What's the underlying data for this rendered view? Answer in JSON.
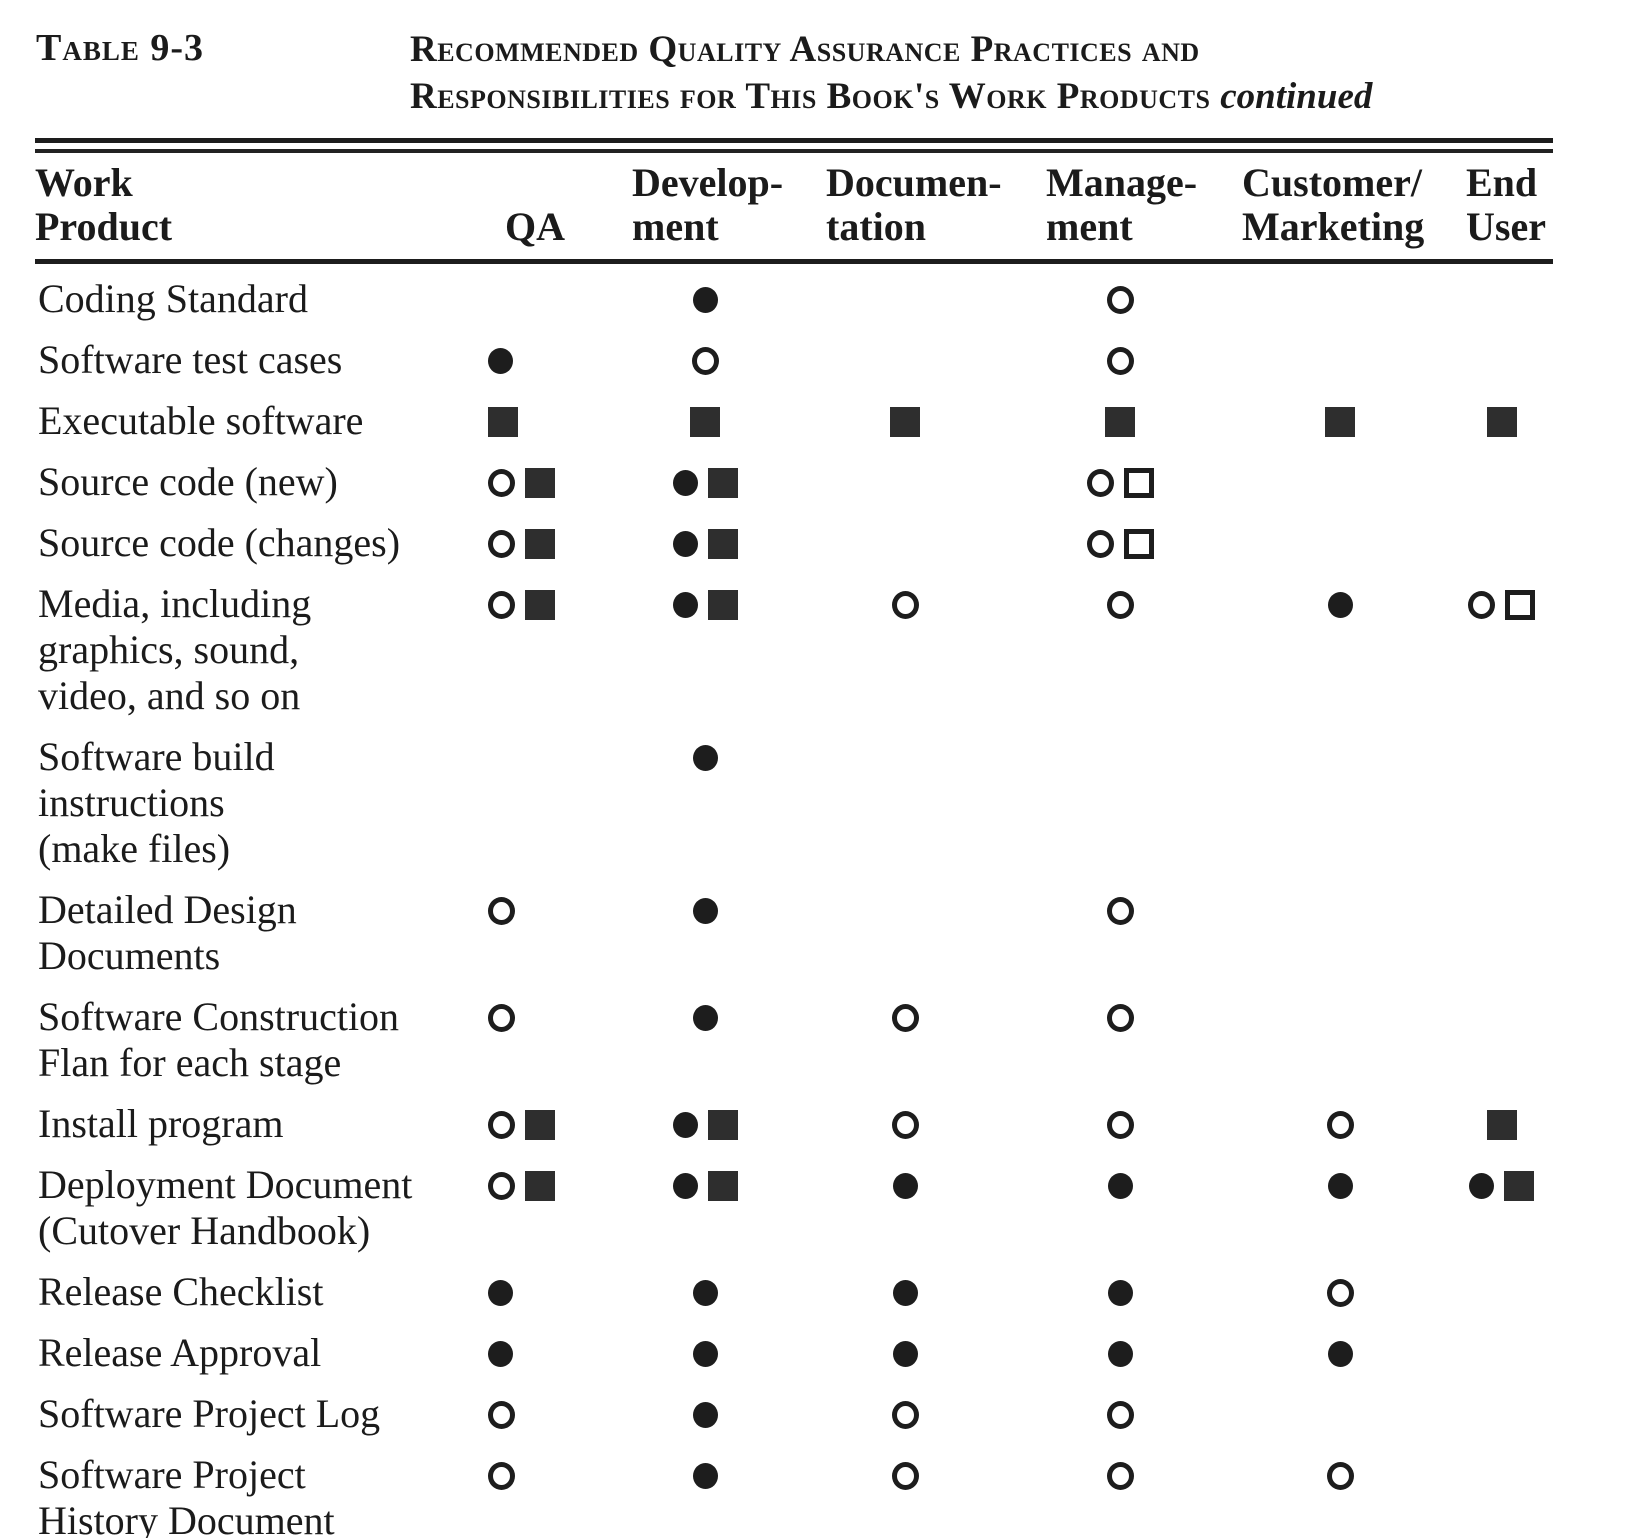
{
  "colors": {
    "ink": "#1d1d1d",
    "paper": "#ffffff"
  },
  "header": {
    "table_label": "Table 9-3",
    "title_line1": "Recommended Quality Assurance Practices and",
    "title_line2": "Responsibilities for This Book's Work Products",
    "title_continued": "continued"
  },
  "table": {
    "columns": [
      "Work Product",
      "QA",
      "Development",
      "Documentation",
      "Management",
      "Customer/Marketing",
      "End User"
    ],
    "header": [
      {
        "line1": "Work",
        "line2": "Product"
      },
      {
        "line1": "",
        "line2": "QA"
      },
      {
        "line1": "Develop-",
        "line2": "ment"
      },
      {
        "line1": "Documen-",
        "line2": "tation"
      },
      {
        "line1": "Manage-",
        "line2": "ment"
      },
      {
        "line1": "Customer/",
        "line2": "Marketing"
      },
      {
        "line1": "End",
        "line2": "User"
      }
    ],
    "symbol_names": {
      "filled-circle": "filled circle",
      "open-circle": "open circle",
      "filled-square": "filled square",
      "open-square": "open square"
    },
    "rows": [
      {
        "label_lines": [
          "Coding Standard"
        ],
        "cells": [
          [],
          [
            "filled-circle"
          ],
          [],
          [
            "open-circle"
          ],
          [],
          []
        ]
      },
      {
        "label_lines": [
          "Software test cases"
        ],
        "cells": [
          [
            "filled-circle"
          ],
          [
            "open-circle"
          ],
          [],
          [
            "open-circle"
          ],
          [],
          []
        ]
      },
      {
        "label_lines": [
          "Executable software"
        ],
        "cells": [
          [
            "filled-square"
          ],
          [
            "filled-square"
          ],
          [
            "filled-square"
          ],
          [
            "filled-square"
          ],
          [
            "filled-square"
          ],
          [
            "filled-square"
          ]
        ]
      },
      {
        "label_lines": [
          "Source code (new)"
        ],
        "cells": [
          [
            "open-circle",
            "filled-square"
          ],
          [
            "filled-circle",
            "filled-square"
          ],
          [],
          [
            "open-circle",
            "open-square"
          ],
          [],
          []
        ]
      },
      {
        "label_lines": [
          "Source code (changes)"
        ],
        "cells": [
          [
            "open-circle",
            "filled-square"
          ],
          [
            "filled-circle",
            "filled-square"
          ],
          [],
          [
            "open-circle",
            "open-square"
          ],
          [],
          []
        ]
      },
      {
        "label_lines": [
          "Media, including",
          "graphics, sound,",
          "video, and so on"
        ],
        "cells": [
          [
            "open-circle",
            "filled-square"
          ],
          [
            "filled-circle",
            "filled-square"
          ],
          [
            "open-circle"
          ],
          [
            "open-circle"
          ],
          [
            "filled-circle"
          ],
          [
            "open-circle",
            "open-square"
          ]
        ]
      },
      {
        "label_lines": [
          "Software  build",
          "instructions",
          "(make files)"
        ],
        "cells": [
          [],
          [
            "filled-circle"
          ],
          [],
          [],
          [],
          []
        ]
      },
      {
        "label_lines": [
          "Detailed Design",
          "Documents"
        ],
        "cells": [
          [
            "open-circle"
          ],
          [
            "filled-circle"
          ],
          [],
          [
            "open-circle"
          ],
          [],
          []
        ]
      },
      {
        "label_lines": [
          "Software  Construction",
          "Flan for each stage"
        ],
        "cells": [
          [
            "open-circle"
          ],
          [
            "filled-circle"
          ],
          [
            "open-circle"
          ],
          [
            "open-circle"
          ],
          [],
          []
        ]
      },
      {
        "label_lines": [
          "Install program"
        ],
        "cells": [
          [
            "open-circle",
            "filled-square"
          ],
          [
            "filled-circle",
            "filled-square"
          ],
          [
            "open-circle"
          ],
          [
            "open-circle"
          ],
          [
            "open-circle"
          ],
          [
            "filled-square"
          ]
        ]
      },
      {
        "label_lines": [
          "Deployment Document",
          "(Cutover  Handbook)"
        ],
        "cells": [
          [
            "open-circle",
            "filled-square"
          ],
          [
            "filled-circle",
            "filled-square"
          ],
          [
            "filled-circle"
          ],
          [
            "filled-circle"
          ],
          [
            "filled-circle"
          ],
          [
            "filled-circle",
            "filled-square"
          ]
        ]
      },
      {
        "label_lines": [
          "Release  Checklist"
        ],
        "cells": [
          [
            "filled-circle"
          ],
          [
            "filled-circle"
          ],
          [
            "filled-circle"
          ],
          [
            "filled-circle"
          ],
          [
            "open-circle"
          ],
          []
        ]
      },
      {
        "label_lines": [
          "Release  Approval"
        ],
        "cells": [
          [
            "filled-circle"
          ],
          [
            "filled-circle"
          ],
          [
            "filled-circle"
          ],
          [
            "filled-circle"
          ],
          [
            "filled-circle"
          ],
          []
        ]
      },
      {
        "label_lines": [
          "Software Project Log"
        ],
        "cells": [
          [
            "open-circle"
          ],
          [
            "filled-circle"
          ],
          [
            "open-circle"
          ],
          [
            "open-circle"
          ],
          [],
          []
        ]
      },
      {
        "label_lines": [
          "Software Project",
          "History Document"
        ],
        "cells": [
          [
            "open-circle"
          ],
          [
            "filled-circle"
          ],
          [
            "open-circle"
          ],
          [
            "open-circle"
          ],
          [
            "open-circle"
          ],
          []
        ]
      }
    ]
  }
}
